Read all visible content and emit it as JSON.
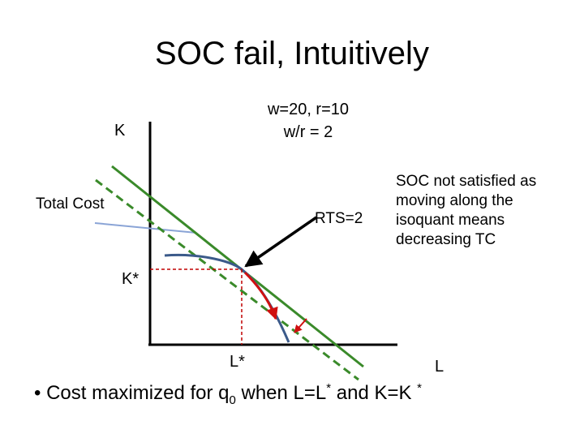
{
  "slide": {
    "title": "SOC fail, Intuitively",
    "prices": {
      "line1": "w=20, r=10",
      "line2": "w/r = 2"
    },
    "labels": {
      "k_axis": "K",
      "l_axis": "L",
      "total_cost": "Total Cost",
      "rts": "RTS=2",
      "k_star": "K*",
      "l_star": "L*"
    },
    "note": "SOC not satisfied as\nmoving along the\nisoquant means\ndecreasing TC",
    "bullet": {
      "marker": "•",
      "text_before": "Cost maximized for q",
      "subscript": "0",
      "text_mid": " when L=L",
      "sup1": "*",
      "text_after": " and K=K ",
      "sup2": "*"
    },
    "colors": {
      "axes": "#000000",
      "isocost": "#3a8a2a",
      "isoquant": "#3b5a8a",
      "tc_pointer": "#8aa4d6",
      "guides": "#c00000",
      "movement_arrows": "#d01010"
    }
  }
}
